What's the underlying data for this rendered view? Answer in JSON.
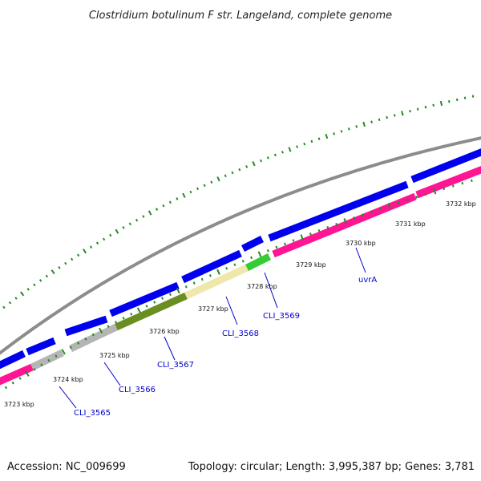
{
  "title": "Clostridium botulinum F str. Langeland, complete genome",
  "footer": {
    "accession": "Accession: NC_009699",
    "topology": "Topology: circular; Length: 3,995,387 bp; Genes: 3,781"
  },
  "kbp_labels": [
    "3723 kbp",
    "3724 kbp",
    "3725 kbp",
    "3726 kbp",
    "3727 kbp",
    "3728 kbp",
    "3729 kbp",
    "3730 kbp",
    "3731 kbp",
    "3732 kbp"
  ],
  "gene_labels": [
    "CLI_3565",
    "CLI_3566",
    "CLI_3567",
    "CLI_3568",
    "CLI_3569",
    "uvrA"
  ],
  "colors": {
    "backbone": "#8c8c8c",
    "forward_gene": "#0000ee",
    "reverse_gene": "#ff1493",
    "gray_gene": "#b5b5b5",
    "olive_gene": "#6b8e23",
    "khaki_gene": "#eee8aa",
    "green_gene": "#33cc33",
    "tick": "#228b22",
    "label_link": "#0000cc"
  }
}
